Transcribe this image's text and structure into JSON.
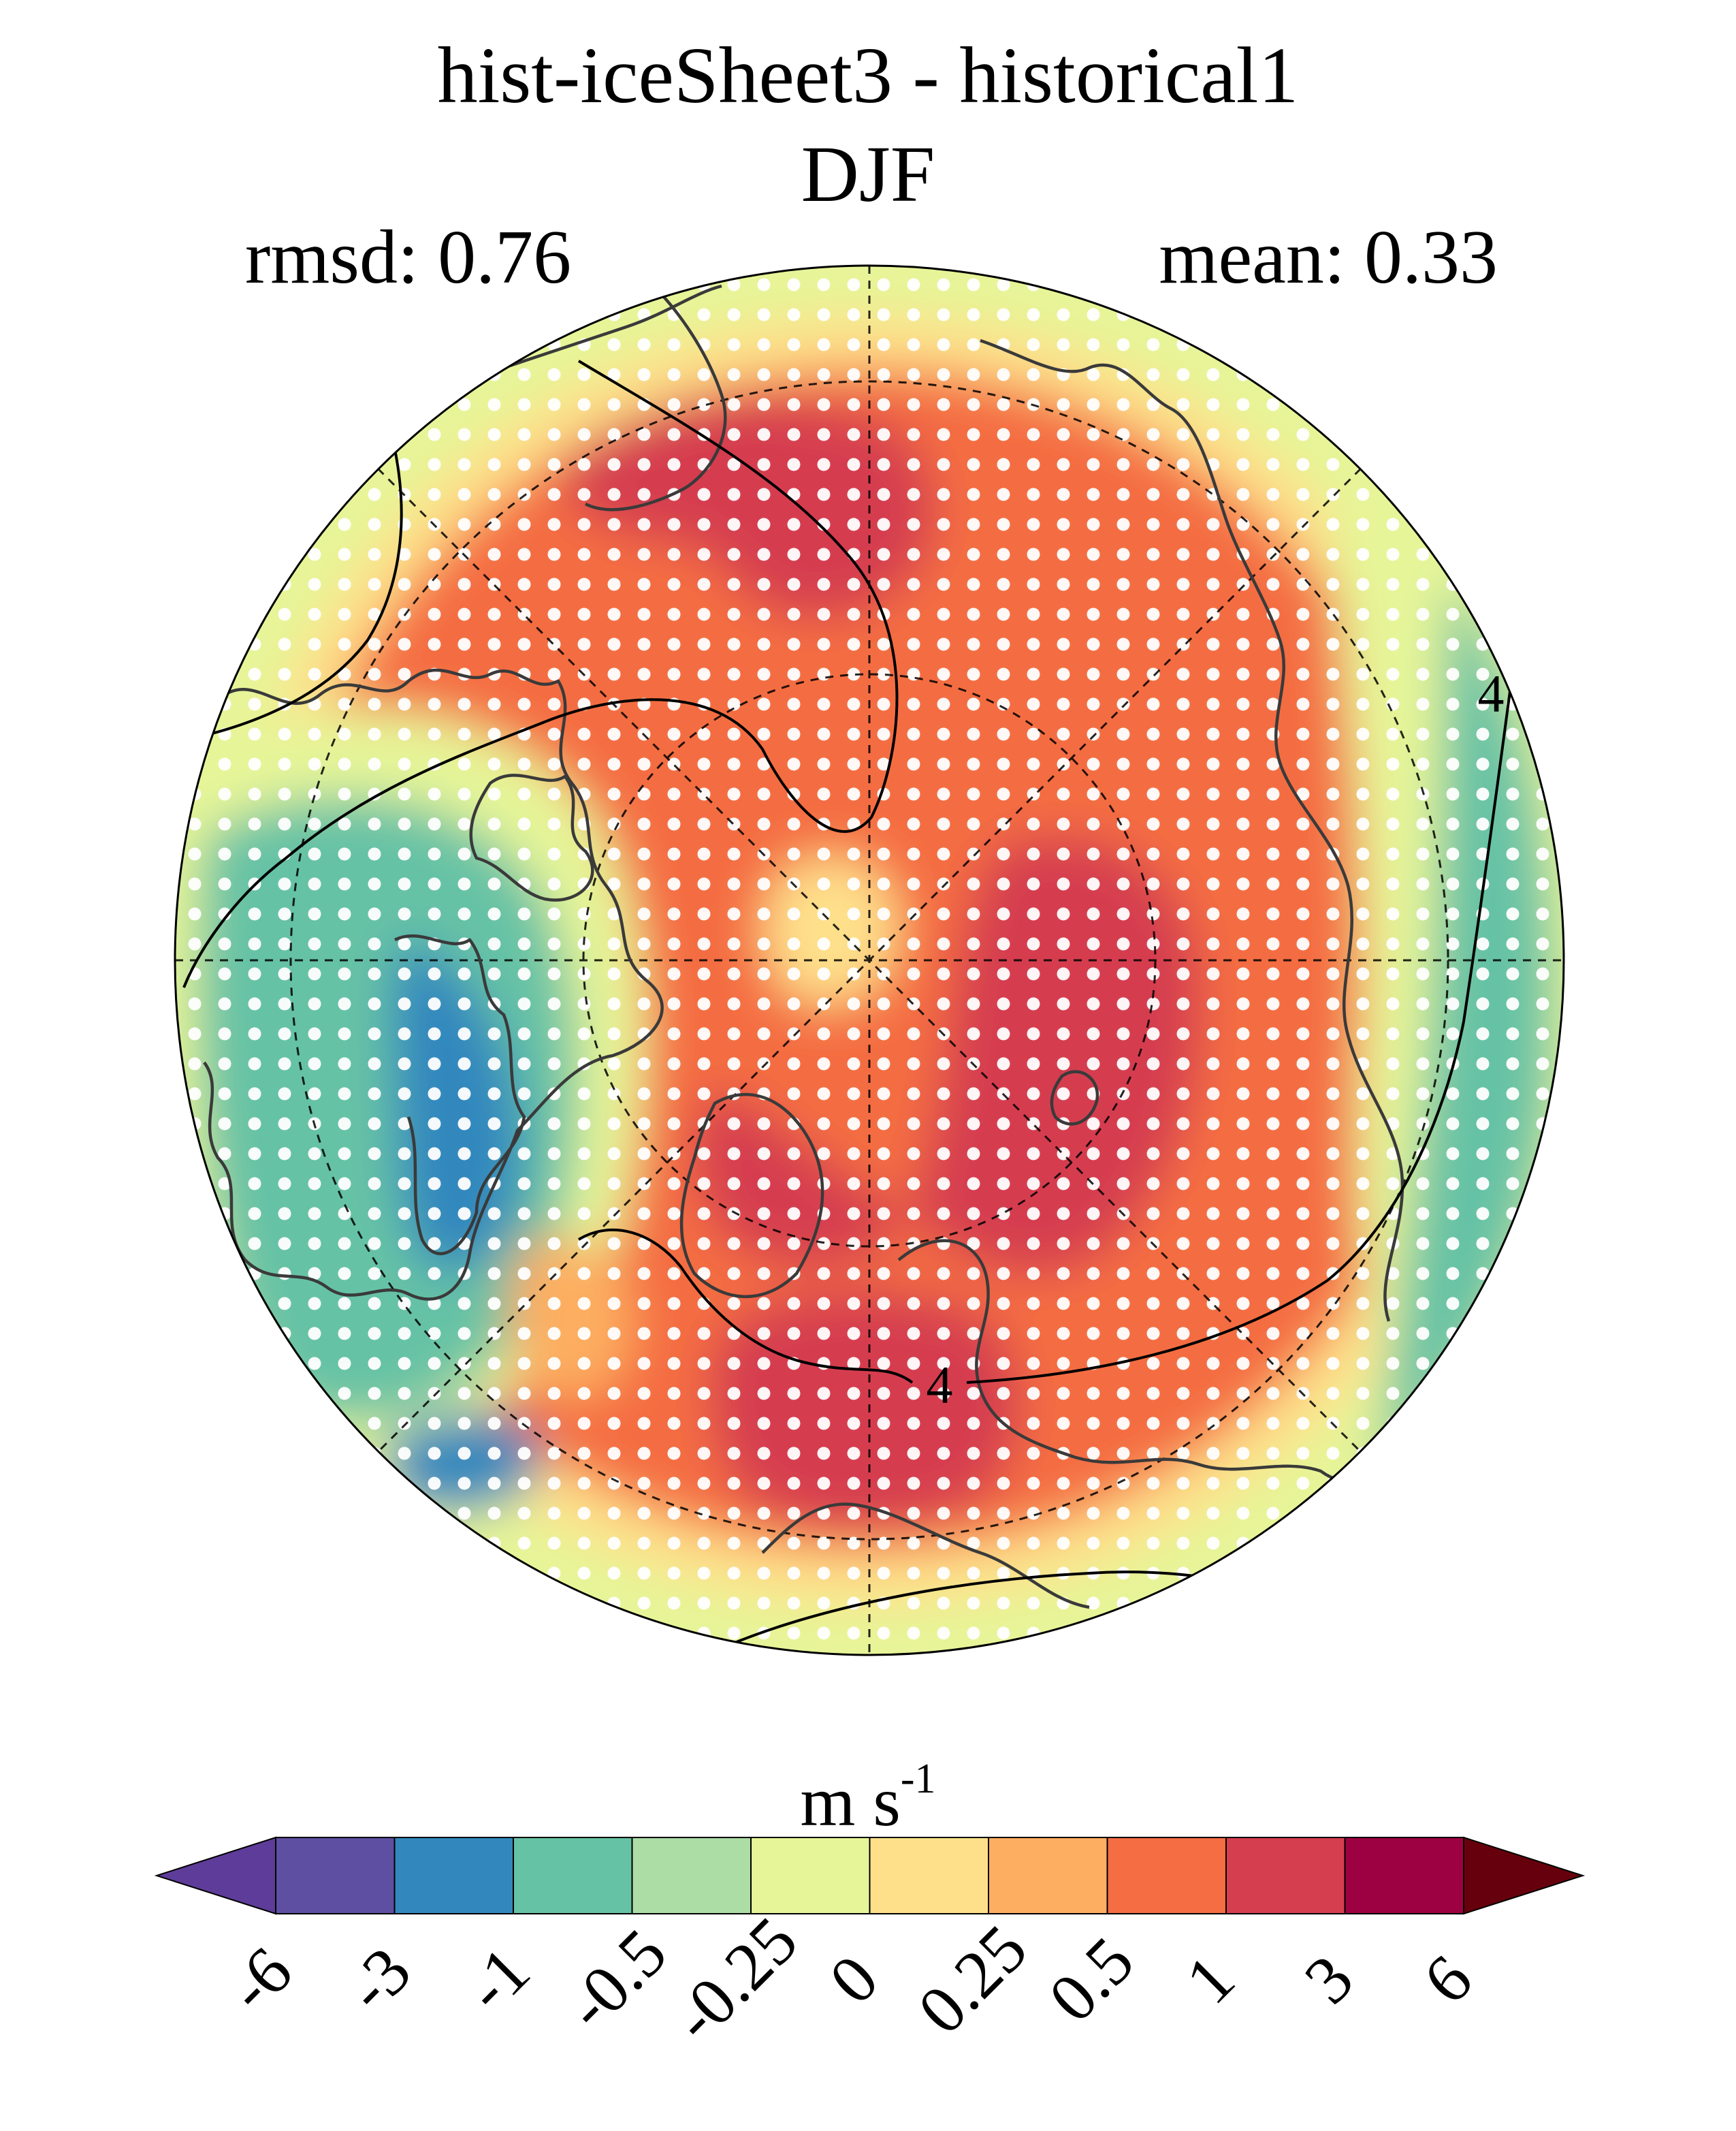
{
  "chart_data": {
    "type": "heatmap",
    "projection": "north-polar-stereographic",
    "title": "hist-iceSheet3 - historical1",
    "subtitle": "DJF",
    "stats": {
      "rmsd_label": "rmsd: 0.76",
      "mean_label": "mean: 0.33",
      "rmsd": 0.76,
      "mean": 0.33
    },
    "colorbar": {
      "unit_base": "m s",
      "unit_exponent": "-1",
      "ticks": [
        "-6",
        "-3",
        "-1",
        "-0.5",
        "-0.25",
        "0",
        "0.25",
        "0.5",
        "1",
        "3",
        "6"
      ],
      "tick_values": [
        -6,
        -3,
        -1,
        -0.5,
        -0.25,
        0,
        0.25,
        0.5,
        1,
        3,
        6
      ],
      "colors": [
        "#5e3c99",
        "#5e4fa2",
        "#3288bd",
        "#66c2a5",
        "#abdda4",
        "#e6f598",
        "#fee08b",
        "#fdae61",
        "#f46d43",
        "#d53e4f",
        "#9e0142",
        "#67000d"
      ],
      "extend": "both",
      "orientation": "horizontal",
      "location": "bottom"
    },
    "contour_label": "4",
    "contour_labels": [
      "4",
      "4"
    ],
    "stippling": "white dots mark significant regions",
    "regions": [
      {
        "name": "central-arctic-bering",
        "band": "1 to 3",
        "color": "#d53e4f"
      },
      {
        "name": "north-atlantic-greenland-sea",
        "band": "1 to 3",
        "color": "#d53e4f"
      },
      {
        "name": "northeast-pacific",
        "band": "1 to 3",
        "color": "#d53e4f"
      },
      {
        "name": "hudson-bay-canada",
        "band": "-3 to -1",
        "color": "#3288bd"
      },
      {
        "name": "north-atlantic-south",
        "band": "-3 to -1",
        "color": "#3288bd"
      },
      {
        "name": "canadian-archipelago",
        "band": "-1 to -0.5",
        "color": "#66c2a5"
      },
      {
        "name": "siberia-east",
        "band": "-1 to -0.5",
        "color": "#66c2a5"
      },
      {
        "name": "north-pole",
        "band": "0 to 0.25",
        "color": "#fee08b"
      },
      {
        "name": "background",
        "band": "0.5 to 1",
        "color": "#f46d43"
      }
    ]
  }
}
